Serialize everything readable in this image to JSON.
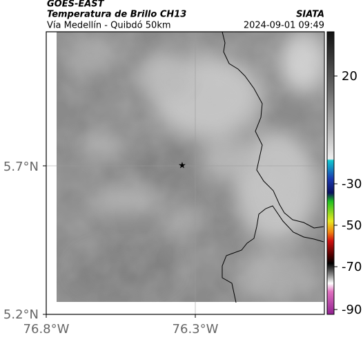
{
  "header": {
    "title": "GOES-EAST",
    "subtitle": "Temperatura de Brillo CH13",
    "brand": "SIATA",
    "route": "Vía Medellín - Quibdó 50km",
    "timestamp": "2024-09-01 09:49"
  },
  "axes": {
    "lat_labels": [
      "5.7°N",
      "5.2°N"
    ],
    "lon_labels": [
      "76.8°W",
      "76.3°W"
    ]
  },
  "colorbar": {
    "labels": [
      "20",
      "-30",
      "-50",
      "-70",
      "-90"
    ]
  }
}
